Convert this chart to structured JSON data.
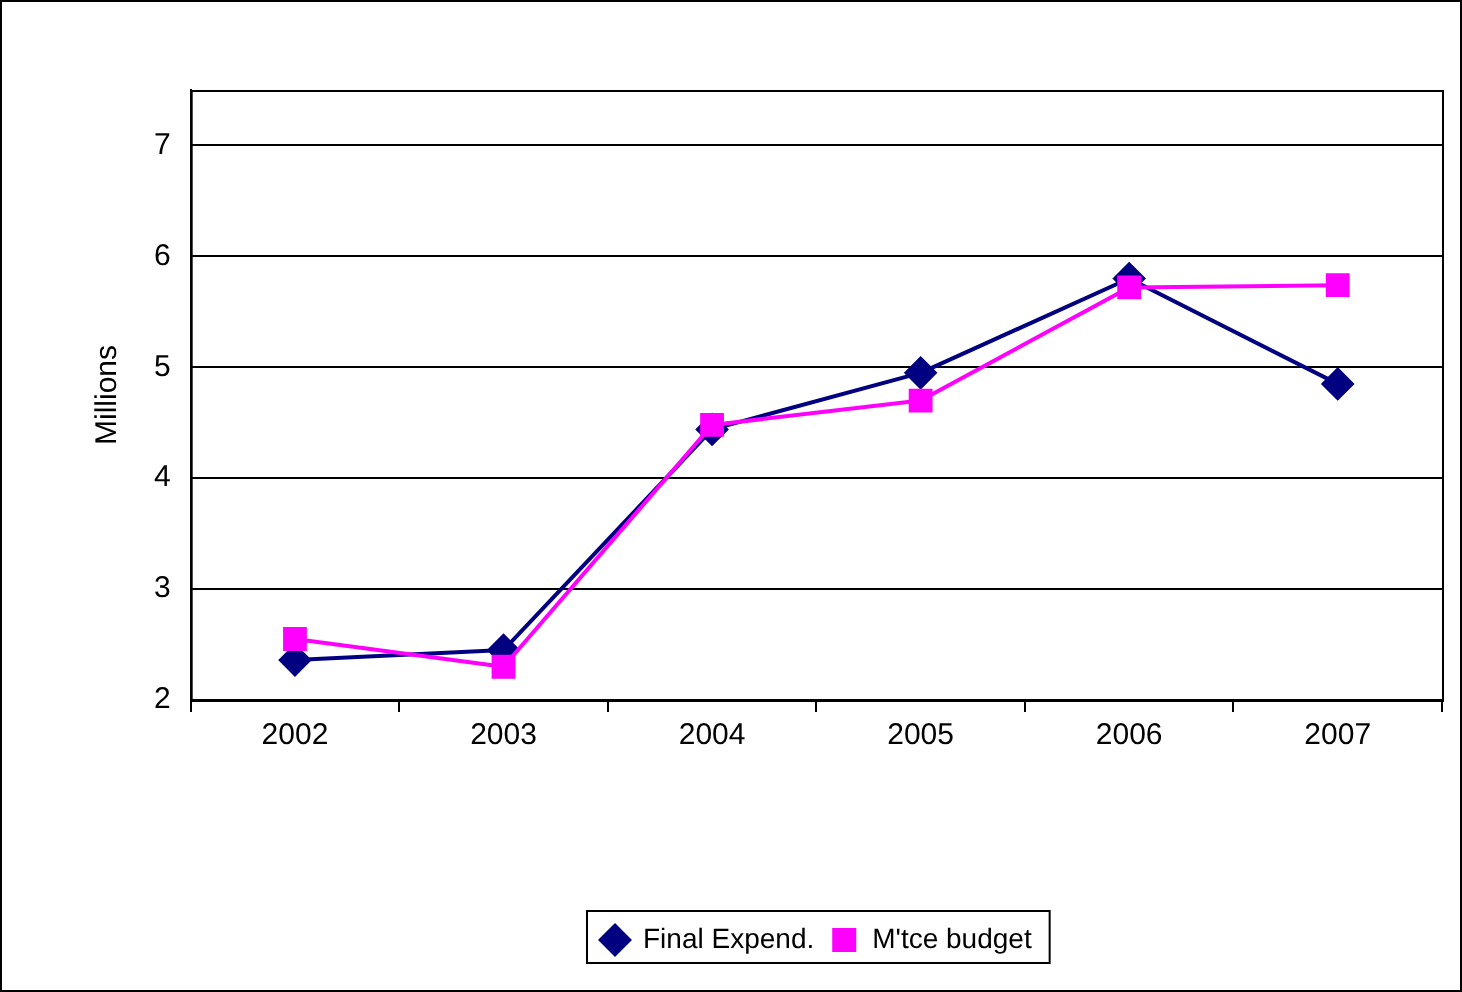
{
  "chart_data": {
    "type": "line",
    "ylabel": "Millions",
    "categories": [
      "2002",
      "2003",
      "2004",
      "2005",
      "2006",
      "2007"
    ],
    "series": [
      {
        "name": "Final Expend.",
        "color": "#000080",
        "marker": "diamond",
        "values": [
          2.36,
          2.45,
          4.44,
          4.95,
          5.8,
          4.85
        ]
      },
      {
        "name": "M'tce budget",
        "color": "#ff00ff",
        "marker": "square",
        "values": [
          2.55,
          2.3,
          4.48,
          4.7,
          5.72,
          5.74
        ]
      }
    ],
    "ylim": [
      2,
      7.5
    ],
    "yticks": [
      2,
      3,
      4,
      5,
      6,
      7
    ],
    "grid": "y",
    "legend": "bottom",
    "line_style": "solid"
  }
}
